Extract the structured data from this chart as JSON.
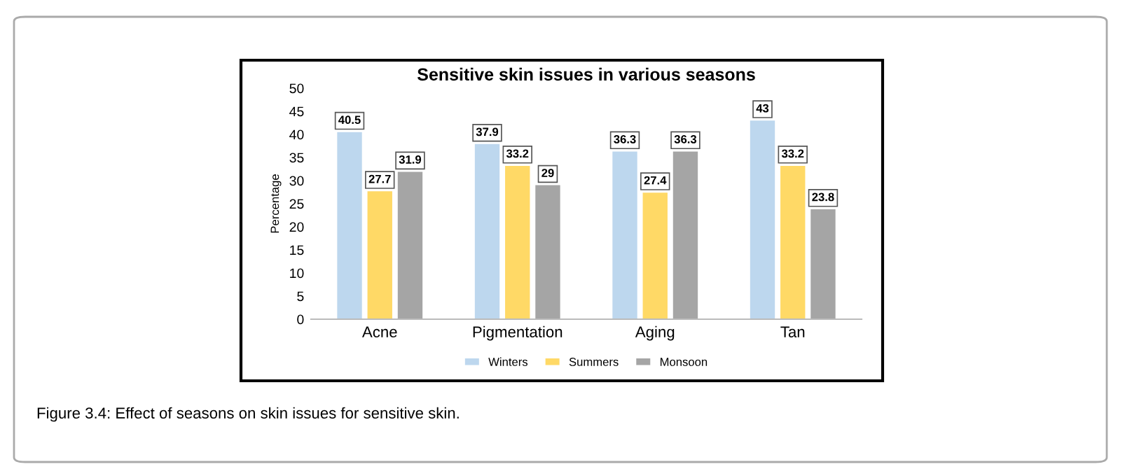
{
  "chart_data": {
    "type": "bar",
    "title": "Sensitive skin issues in various seasons",
    "ylabel": "Percentage",
    "categories": [
      "Acne",
      "Pigmentation",
      "Aging",
      "Tan"
    ],
    "series": [
      {
        "name": "Winters",
        "color": "#bdd7ee",
        "values": [
          40.5,
          37.9,
          36.3,
          43
        ]
      },
      {
        "name": "Summers",
        "color": "#ffd966",
        "values": [
          27.7,
          33.2,
          27.4,
          33.2
        ]
      },
      {
        "name": "Monsoon",
        "color": "#a5a5a5",
        "values": [
          31.9,
          29,
          36.3,
          23.8
        ]
      }
    ],
    "ylim": [
      0,
      50
    ],
    "yticks": [
      0,
      5,
      10,
      15,
      20,
      25,
      30,
      35,
      40,
      45,
      50
    ],
    "grid": false,
    "legend": "bottom",
    "data_labels": true,
    "annotations": [
      "Figure 3.4: Effect of seasons on skin issues for sensitive skin."
    ]
  }
}
